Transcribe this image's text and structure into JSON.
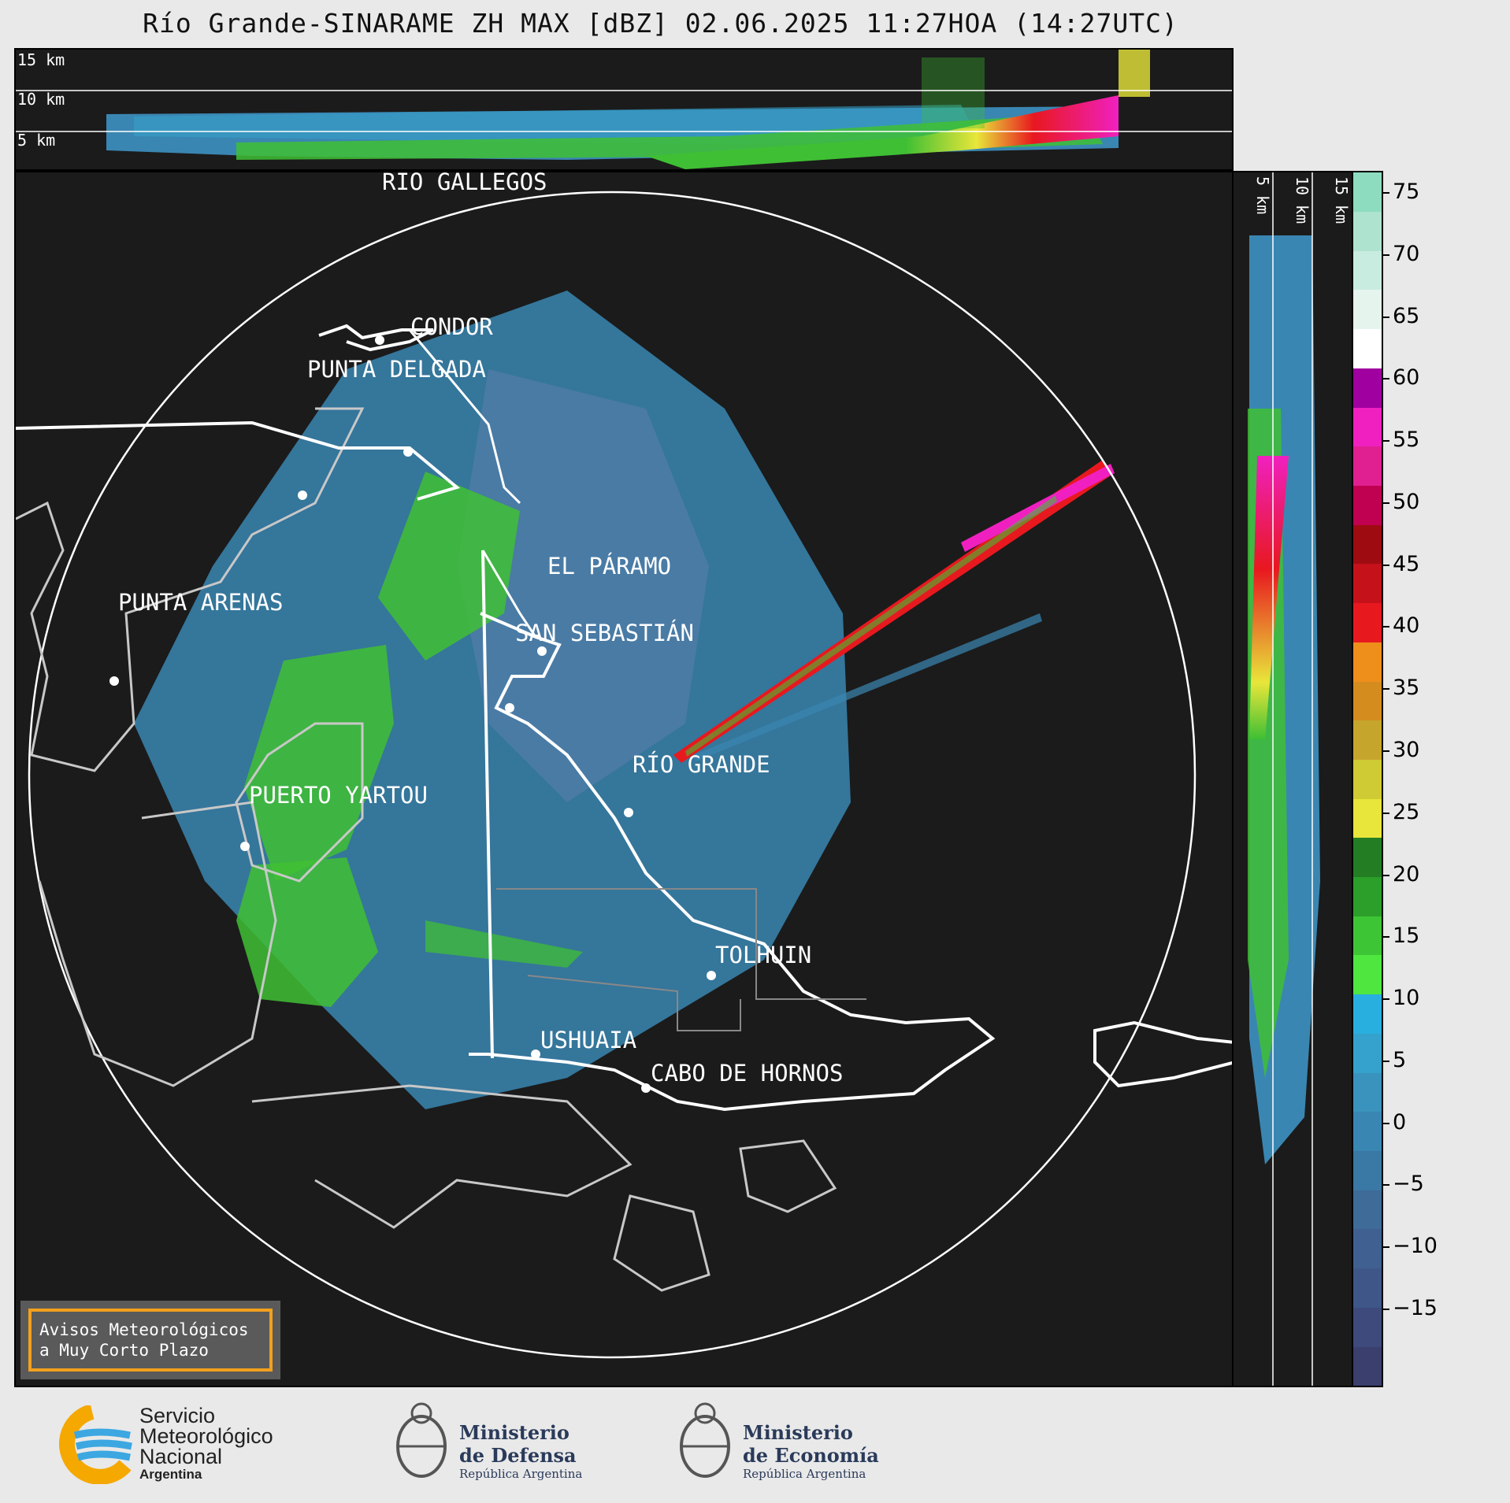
{
  "title": "Río Grande-SINARAME ZH MAX [dBZ] 02.06.2025 11:27HOA (14:27UTC)",
  "top_panel": {
    "altitudes": [
      "15 km",
      "10 km",
      "5 km"
    ]
  },
  "side_panel": {
    "altitudes": [
      "5 km",
      "10 km",
      "15 km"
    ]
  },
  "places": [
    {
      "name": "RÍO GALLEGOS"
    },
    {
      "name": "CONDOR"
    },
    {
      "name": "PUNTA DELGADA"
    },
    {
      "name": "EL PÁRAMO"
    },
    {
      "name": "SAN SEBASTIÁN"
    },
    {
      "name": "PUNTA ARENAS"
    },
    {
      "name": "RÍO GRANDE"
    },
    {
      "name": "PUERTO YARTOU"
    },
    {
      "name": "TOLHUIN"
    },
    {
      "name": "USHUAIA"
    },
    {
      "name": "CABO DE HORNOS"
    }
  ],
  "colorbar": {
    "unit": "dBZ",
    "ticks": [
      "75",
      "70",
      "65",
      "60",
      "55",
      "50",
      "45",
      "40",
      "35",
      "30",
      "25",
      "20",
      "15",
      "10",
      "5",
      "0",
      "−5",
      "−10",
      "−15"
    ],
    "colors": [
      "#3b3f6e",
      "#3e4a7c",
      "#3f5688",
      "#3f6090",
      "#3e6b98",
      "#3a78a5",
      "#3a86b2",
      "#3a93bc",
      "#34a2cc",
      "#28afdf",
      "#4fe640",
      "#3ec535",
      "#2c9f2b",
      "#237e23",
      "#e8e63a",
      "#cfcb34",
      "#c6a52d",
      "#d48c1f",
      "#ee8e1b",
      "#e8181f",
      "#c4111a",
      "#9e0c12",
      "#c00050",
      "#e02090",
      "#f020c0",
      "#a000a0",
      "#ffffff",
      "#e6f4ee",
      "#c9ece0",
      "#aee3cf",
      "#8edcc0"
    ]
  },
  "warning": {
    "line1": "Avisos Meteorológicos",
    "line2": "a Muy Corto Plazo"
  },
  "logos": {
    "smn": {
      "line1": "Servicio",
      "line2": "Meteorológico",
      "line3": "Nacional",
      "line4": "Argentina"
    },
    "defensa": {
      "line1": "Ministerio",
      "line2": "de Defensa",
      "line3": "República Argentina"
    },
    "economia": {
      "line1": "Ministerio",
      "line2": "de Economía",
      "line3": "República Argentina"
    }
  }
}
